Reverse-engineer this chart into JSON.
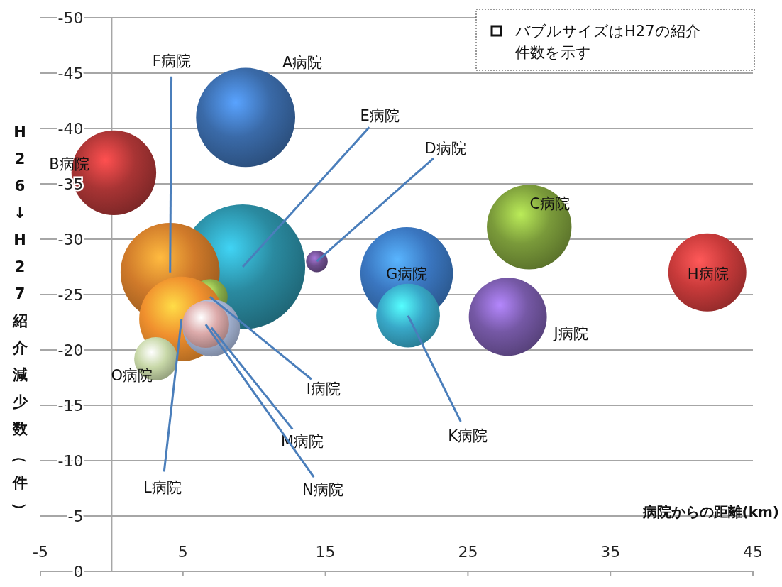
{
  "chart_data": {
    "type": "bubble",
    "xlabel": "病院からの距離(km)",
    "ylabel": "H26↓H27紹介減少数（件）",
    "xlim": [
      -5,
      45
    ],
    "xticks": [
      -5,
      5,
      15,
      25,
      35,
      45
    ],
    "ylim": [
      0,
      -50
    ],
    "yticks": [
      0,
      -5,
      -10,
      -15,
      -20,
      -25,
      -30,
      -35,
      -40,
      -45,
      -50
    ],
    "grid": "y",
    "series": [
      {
        "x": [
          9.4,
          0.15,
          29.3,
          14.4,
          9.2,
          4.1,
          20.7,
          41.8,
          6.9,
          27.8,
          20.8,
          4.9,
          7.0,
          6.6,
          3.1
        ],
        "values": [
          -41.0,
          -36.0,
          -31.1,
          -28.0,
          -27.5,
          -27.0,
          -26.9,
          -27.0,
          -24.8,
          -23.0,
          -23.1,
          -22.8,
          -22.0,
          -22.3,
          -19.2
        ],
        "sizes": [
          0.63,
          0.46,
          0.46,
          0.03,
          1,
          0.63,
          0.55,
          0.39,
          0.08,
          0.39,
          0.26,
          0.46,
          0.21,
          0.14,
          0.12
        ],
        "colors": [
          "#3a6aa8",
          "#a83434",
          "#7a9a3a",
          "#6e4e8e",
          "#2a8aa0",
          "#d07a2a",
          "#3a76c0",
          "#c83a3a",
          "#8ab04a",
          "#7558a5",
          "#38a8c8",
          "#f0902e",
          "#a8b8d8",
          "#dcaaaa",
          "#c8d8a8"
        ]
      }
    ],
    "annotations": [
      "A病院",
      {
        "text": "B病院",
        "x": 0.15,
        "y": -36.0
      },
      {
        "text": "C病院",
        "x": 29.3,
        "y": -31.1
      },
      {
        "text": "D病院",
        "x": 14.4,
        "y": -28.0
      },
      {
        "text": "E病院",
        "x": 9.2,
        "y": -27.5
      },
      {
        "text": "F病院",
        "x": 4.1,
        "y": -27.0
      },
      {
        "text": "G病院",
        "x": 20.7,
        "y": -26.9
      },
      {
        "text": "H病院",
        "x": 41.8,
        "y": -27.0
      },
      {
        "text": "I病院",
        "x": 6.9,
        "y": -24.8
      },
      "J病院",
      {
        "text": "K病院",
        "x": 20.8,
        "y": -23.1
      },
      {
        "text": "L病院",
        "x": 4.9,
        "y": -22.8
      },
      {
        "text": "M病院",
        "x": 7.0,
        "y": -22.0
      },
      {
        "text": "N病院",
        "x": 6.6,
        "y": -22.3
      },
      {
        "text": "O病院",
        "x": 3.1,
        "y": -19.2
      },
      "バブルサイズはH27の紹介件数を示す"
    ]
  }
}
